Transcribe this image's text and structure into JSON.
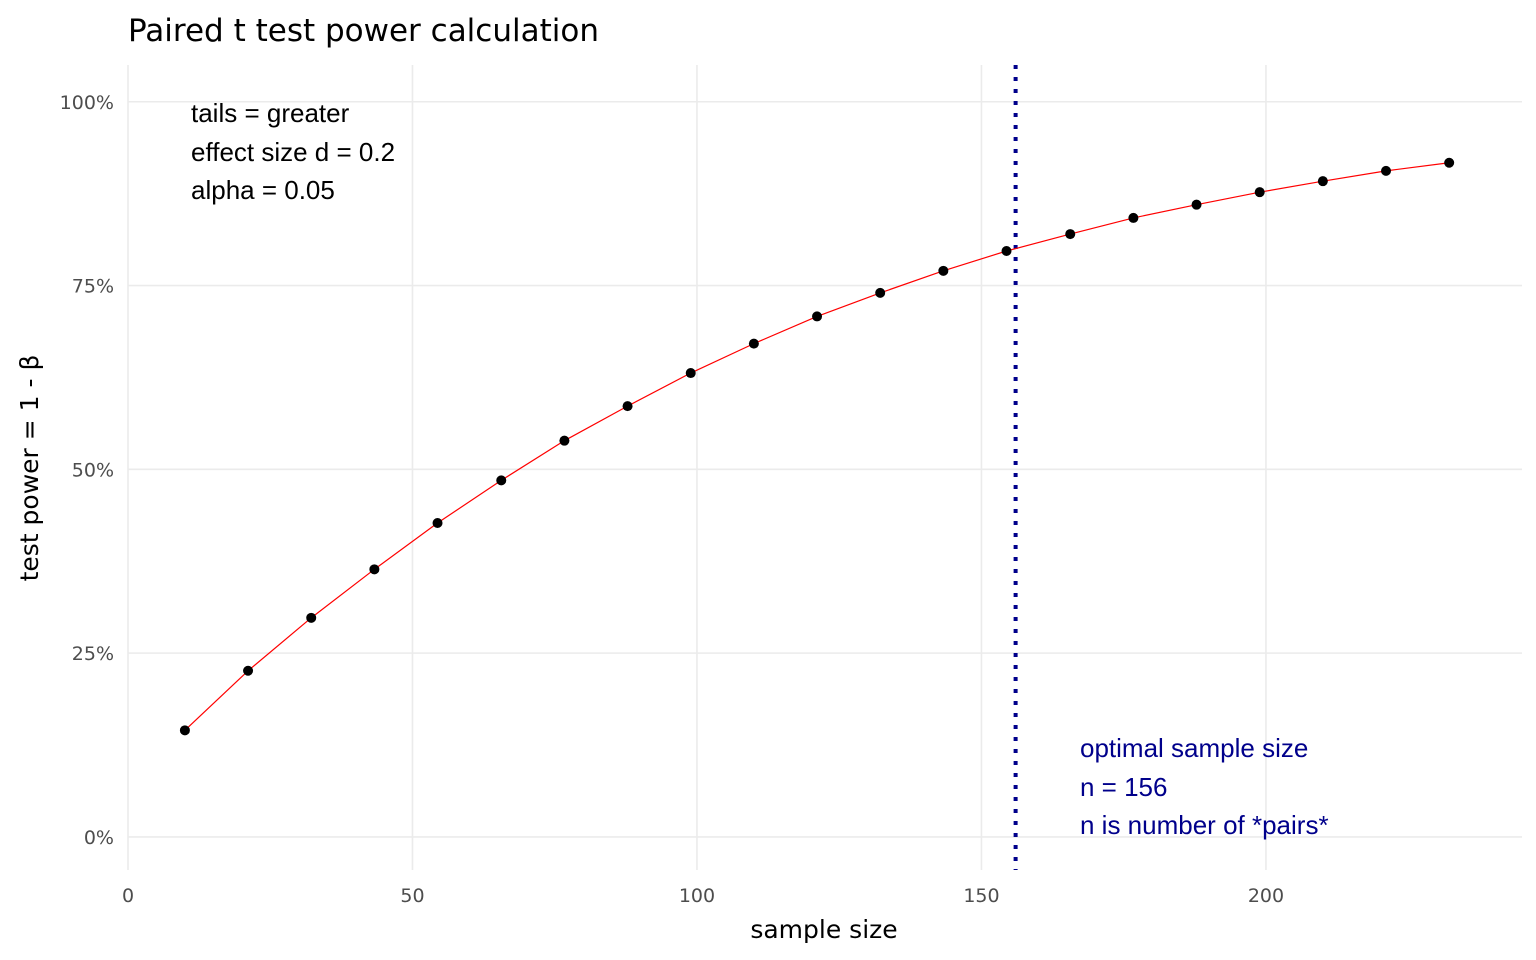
{
  "chart_data": {
    "type": "line",
    "title": "Paired t test power calculation",
    "xlabel": "sample size",
    "ylabel": "test power = 1 - β",
    "xlim": [
      0,
      245
    ],
    "ylim": [
      -0.045,
      1.05
    ],
    "x_ticks": [
      0,
      50,
      100,
      150,
      200
    ],
    "x_tick_labels": [
      "0",
      "50",
      "100",
      "150",
      "200"
    ],
    "y_ticks": [
      0,
      0.25,
      0.5,
      0.75,
      1.0
    ],
    "y_tick_labels": [
      "0%",
      "25%",
      "50%",
      "75%",
      "100%"
    ],
    "grid": true,
    "colors": {
      "line": "#ff0000",
      "points": "#000000",
      "vline": "#00008b",
      "annotation_optimal": "#00008b",
      "grid": "#ebebeb"
    },
    "series": [
      {
        "x": [
          10,
          21.1,
          32.2,
          43.3,
          54.4,
          65.6,
          76.7,
          87.8,
          98.9,
          110,
          121.1,
          132.2,
          143.3,
          154.4,
          165.6,
          176.7,
          187.8,
          198.9,
          210,
          221.1,
          232.2
        ],
        "y": [
          0.145,
          0.226,
          0.298,
          0.364,
          0.427,
          0.485,
          0.539,
          0.586,
          0.631,
          0.671,
          0.708,
          0.74,
          0.77,
          0.797,
          0.82,
          0.842,
          0.86,
          0.877,
          0.892,
          0.906,
          0.917
        ]
      }
    ],
    "vline": {
      "x": 156,
      "style": "dotted"
    },
    "annotations": {
      "params": [
        "tails = greater",
        "effect size d = 0.2",
        "alpha = 0.05"
      ],
      "optimal": [
        "optimal sample size",
        "n = 156",
        "n is number of *pairs*"
      ]
    }
  }
}
